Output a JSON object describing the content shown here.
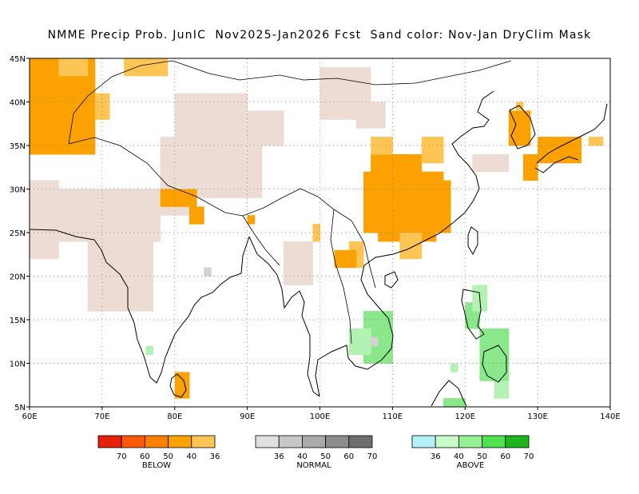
{
  "title": "NMME Precip Prob. JunIC  Nov2025-Jan2026 Fcst  Sand color: Nov-Jan DryClim Mask",
  "map": {
    "lon_range": [
      60,
      140
    ],
    "lat_range": [
      5,
      45
    ],
    "lon_ticks": [
      "60E",
      "70E",
      "80E",
      "90E",
      "100E",
      "110E",
      "120E",
      "130E",
      "140E"
    ],
    "lat_ticks": [
      "5N",
      "10N",
      "15N",
      "20N",
      "25N",
      "30N",
      "35N",
      "40N",
      "45N"
    ],
    "colors": {
      "dry_mask": "#ecdcd3",
      "below_40": "#fba202",
      "below_36": "#fdc554",
      "normal_36": "#d2d2d2",
      "above_36": "#b4f2b4",
      "above_40": "#8ae88a",
      "coast": "#000000"
    }
  },
  "legends": [
    {
      "name": "BELOW",
      "ticks": [
        "70",
        "60",
        "50",
        "40",
        "36"
      ],
      "colors": [
        "#e62108",
        "#fb5a0a",
        "#fc7f06",
        "#fba202",
        "#fdc554"
      ]
    },
    {
      "name": "NORMAL",
      "ticks": [
        "36",
        "40",
        "50",
        "60",
        "70"
      ],
      "colors": [
        "#e0e0e0",
        "#c7c7c7",
        "#aaaaaa",
        "#8c8c8c",
        "#6e6e6e"
      ]
    },
    {
      "name": "ABOVE",
      "ticks": [
        "36",
        "40",
        "50",
        "60",
        "70"
      ],
      "colors": [
        "#b2f1fa",
        "#c8fbc8",
        "#96f096",
        "#50e050",
        "#1eb41e"
      ]
    }
  ]
}
